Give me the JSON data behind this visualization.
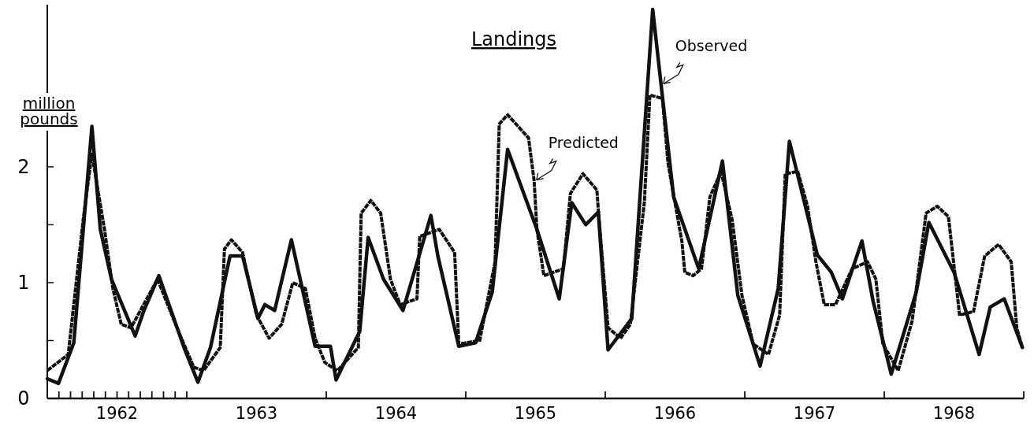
{
  "chart_data": {
    "type": "line",
    "title": "Landings",
    "ylabel": "million pounds",
    "xlim": [
      1962,
      1969
    ],
    "ylim": [
      0,
      3.4
    ],
    "xticks": [
      {
        "value": 1962.0833,
        "label": null
      },
      {
        "value": 1962.1667,
        "label": null
      },
      {
        "value": 1962.25,
        "label": null
      },
      {
        "value": 1962.3333,
        "label": null
      },
      {
        "value": 1962.4167,
        "label": null
      },
      {
        "value": 1962.5,
        "label": null
      },
      {
        "value": 1962.5833,
        "label": null
      },
      {
        "value": 1962.6667,
        "label": null
      },
      {
        "value": 1962.75,
        "label": null
      },
      {
        "value": 1962.8333,
        "label": null
      },
      {
        "value": 1962.9167,
        "label": null
      },
      {
        "value": 1963,
        "label": null
      },
      {
        "value": 1964,
        "label": null
      },
      {
        "value": 1965,
        "label": null
      },
      {
        "value": 1966,
        "label": null
      },
      {
        "value": 1967,
        "label": null
      },
      {
        "value": 1968,
        "label": null
      },
      {
        "value": 1969,
        "label": null
      },
      {
        "value": 1962.5,
        "label": "1962"
      },
      {
        "value": 1963.5,
        "label": "1963"
      },
      {
        "value": 1964.5,
        "label": "1964"
      },
      {
        "value": 1965.5,
        "label": "1965"
      },
      {
        "value": 1966.5,
        "label": "1966"
      },
      {
        "value": 1967.5,
        "label": "1967"
      },
      {
        "value": 1968.5,
        "label": "1968"
      }
    ],
    "yticks": [
      0,
      {
        "value": 0.5,
        "label": null
      },
      1,
      {
        "value": 1.5,
        "label": null
      },
      2
    ],
    "grid": false,
    "marker": "none",
    "series": [
      {
        "color": "#111111",
        "line_style": "solid",
        "x": [
          1962.0,
          1962.08,
          1962.19,
          1962.32,
          1962.38,
          1962.46,
          1962.63,
          1962.69,
          1962.8,
          1962.98,
          1963.08,
          1963.17,
          1963.31,
          1963.4,
          1963.51,
          1963.56,
          1963.63,
          1963.75,
          1963.92,
          1964.03,
          1964.07,
          1964.24,
          1964.3,
          1964.41,
          1964.55,
          1964.75,
          1964.8,
          1964.95,
          1965.07,
          1965.19,
          1965.3,
          1965.51,
          1965.67,
          1965.76,
          1965.86,
          1965.95,
          1966.02,
          1966.19,
          1966.34,
          1966.49,
          1966.67,
          1966.84,
          1966.95,
          1967.11,
          1967.24,
          1967.32,
          1967.52,
          1967.62,
          1967.7,
          1967.84,
          1967.92,
          1968.05,
          1968.23,
          1968.32,
          1968.5,
          1968.68,
          1968.76,
          1968.86,
          1968.99
        ],
        "values": [
          0.17,
          0.13,
          0.48,
          2.35,
          1.46,
          1.03,
          0.54,
          0.75,
          1.06,
          0.44,
          0.14,
          0.44,
          1.23,
          1.23,
          0.69,
          0.81,
          0.76,
          1.37,
          0.45,
          0.45,
          0.16,
          0.58,
          1.39,
          1.03,
          0.76,
          1.58,
          1.23,
          0.45,
          0.48,
          0.92,
          2.15,
          1.46,
          0.86,
          1.69,
          1.5,
          1.61,
          0.42,
          0.69,
          3.36,
          1.74,
          1.12,
          2.05,
          0.89,
          0.28,
          0.95,
          2.22,
          1.24,
          1.09,
          0.86,
          1.36,
          0.84,
          0.21,
          0.92,
          1.52,
          1.09,
          0.38,
          0.79,
          0.86,
          0.44
        ]
      },
      {
        "color": "#111111",
        "line_style": "dotted",
        "x": [
          1962.01,
          1962.15,
          1962.26,
          1962.32,
          1962.41,
          1962.47,
          1962.53,
          1962.6,
          1962.79,
          1962.93,
          1963.05,
          1963.12,
          1963.24,
          1963.27,
          1963.32,
          1963.4,
          1963.5,
          1963.59,
          1963.68,
          1963.76,
          1963.85,
          1963.92,
          1963.99,
          1964.08,
          1964.23,
          1964.25,
          1964.32,
          1964.39,
          1964.46,
          1964.53,
          1964.65,
          1964.67,
          1964.81,
          1964.92,
          1964.95,
          1965.1,
          1965.21,
          1965.24,
          1965.3,
          1965.45,
          1965.49,
          1965.51,
          1965.56,
          1965.7,
          1965.75,
          1965.84,
          1965.94,
          1965.95,
          1966.02,
          1966.11,
          1966.18,
          1966.28,
          1966.32,
          1966.41,
          1966.45,
          1966.55,
          1966.57,
          1966.63,
          1966.69,
          1966.75,
          1966.83,
          1966.91,
          1966.98,
          1967.06,
          1967.17,
          1967.25,
          1967.29,
          1967.38,
          1967.45,
          1967.51,
          1967.57,
          1967.65,
          1967.77,
          1967.88,
          1967.94,
          1967.99,
          1968.1,
          1968.2,
          1968.3,
          1968.38,
          1968.46,
          1968.54,
          1968.64,
          1968.72,
          1968.82,
          1968.91,
          1968.95,
          1968.99
        ],
        "values": [
          0.25,
          0.38,
          1.57,
          2.11,
          1.46,
          0.95,
          0.64,
          0.61,
          1.03,
          0.61,
          0.27,
          0.24,
          0.44,
          1.29,
          1.37,
          1.26,
          0.72,
          0.52,
          0.64,
          1.0,
          0.95,
          0.52,
          0.31,
          0.24,
          0.44,
          1.6,
          1.71,
          1.6,
          1.03,
          0.81,
          0.86,
          1.4,
          1.46,
          1.26,
          0.47,
          0.5,
          1.18,
          2.37,
          2.45,
          2.25,
          1.88,
          1.46,
          1.06,
          1.12,
          1.77,
          1.94,
          1.8,
          1.63,
          0.61,
          0.52,
          0.64,
          1.69,
          2.62,
          2.59,
          2.03,
          1.35,
          1.09,
          1.06,
          1.12,
          1.74,
          1.96,
          1.54,
          0.89,
          0.47,
          0.38,
          0.72,
          1.94,
          1.96,
          1.66,
          1.18,
          0.81,
          0.81,
          1.12,
          1.18,
          1.03,
          0.47,
          0.24,
          0.67,
          1.6,
          1.66,
          1.57,
          0.72,
          0.75,
          1.23,
          1.33,
          1.18,
          0.61,
          0.44
        ]
      }
    ],
    "annotations": [
      {
        "text": "Observed",
        "x": 1966.4,
        "y": 2.71
      },
      {
        "text": "Predicted",
        "x": 1965.49,
        "y": 1.88
      }
    ]
  }
}
